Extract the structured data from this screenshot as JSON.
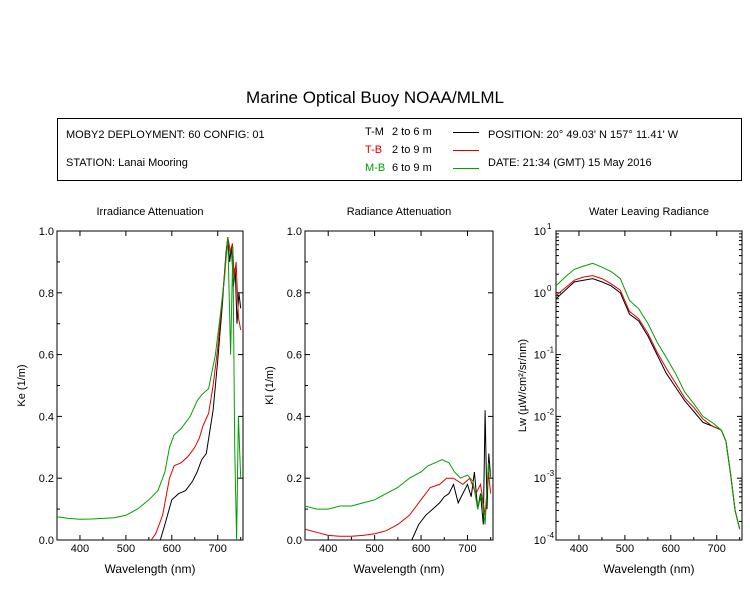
{
  "title": "Marine Optical Buoy NOAA/MLML",
  "info": {
    "deployment": "MOBY2 DEPLOYMENT: 60 CONFIG: 01",
    "station": "STATION: Lanai Mooring",
    "position": "POSITION: 20° 49.03' N   157° 11.41' W",
    "date": "DATE: 21:34 (GMT) 15 May 2016"
  },
  "legend": [
    {
      "label": "T-M",
      "range": "2 to 6  m",
      "color": "#000000"
    },
    {
      "label": "T-B",
      "range": "2 to 9  m",
      "color": "#e00000"
    },
    {
      "label": "M-B",
      "range": "6 to 9  m",
      "color": "#00a000"
    }
  ],
  "chart_data": [
    {
      "type": "line",
      "title": "Irradiance Attenuation",
      "xlabel": "Wavelength (nm)",
      "ylabel": "Ke  (1/m)",
      "xlim": [
        350,
        755
      ],
      "ylim": [
        0,
        1.0
      ],
      "xticks": [
        "400",
        "500",
        "600",
        "700"
      ],
      "yticks": [
        "0.0",
        "0.2",
        "0.4",
        "0.6",
        "0.8",
        "1.0"
      ],
      "series": [
        {
          "name": "T-M",
          "color": "#000000",
          "x": [
            575,
            585,
            600,
            615,
            630,
            645,
            655,
            665,
            675,
            690,
            700,
            710,
            718,
            722,
            726,
            730,
            734,
            738,
            742,
            746,
            750
          ],
          "y": [
            0.0,
            0.05,
            0.13,
            0.15,
            0.16,
            0.19,
            0.22,
            0.26,
            0.28,
            0.42,
            0.58,
            0.76,
            0.93,
            0.98,
            0.9,
            0.95,
            0.82,
            0.88,
            0.7,
            0.8,
            0.75
          ]
        },
        {
          "name": "T-B",
          "color": "#e00000",
          "x": [
            555,
            565,
            580,
            595,
            605,
            620,
            635,
            650,
            660,
            668,
            680,
            690,
            700,
            710,
            718,
            722,
            728,
            732,
            736,
            740,
            745,
            750
          ],
          "y": [
            0.0,
            0.02,
            0.08,
            0.2,
            0.24,
            0.25,
            0.27,
            0.3,
            0.33,
            0.37,
            0.41,
            0.5,
            0.62,
            0.78,
            0.92,
            0.98,
            0.93,
            0.96,
            0.85,
            0.9,
            0.72,
            0.68
          ]
        },
        {
          "name": "M-B",
          "color": "#00a000",
          "x": [
            350,
            375,
            400,
            425,
            450,
            475,
            500,
            525,
            550,
            570,
            585,
            595,
            605,
            620,
            640,
            655,
            665,
            680,
            695,
            705,
            715,
            722,
            728,
            733,
            737,
            741,
            745,
            750
          ],
          "y": [
            0.075,
            0.07,
            0.067,
            0.068,
            0.07,
            0.072,
            0.08,
            0.1,
            0.13,
            0.16,
            0.22,
            0.3,
            0.34,
            0.36,
            0.4,
            0.45,
            0.47,
            0.49,
            0.6,
            0.72,
            0.85,
            0.98,
            0.6,
            0.95,
            0.3,
            0.0,
            0.4,
            0.2
          ]
        }
      ]
    },
    {
      "type": "line",
      "title": "Radiance Attenuation",
      "xlabel": "Wavelength (nm)",
      "ylabel": "Kl  (1/m)",
      "xlim": [
        350,
        755
      ],
      "ylim": [
        0,
        1.0
      ],
      "xticks": [
        "400",
        "500",
        "600",
        "700"
      ],
      "yticks": [
        "0.0",
        "0.2",
        "0.4",
        "0.6",
        "0.8",
        "1.0"
      ],
      "series": [
        {
          "name": "T-M",
          "color": "#000000",
          "x": [
            580,
            595,
            610,
            625,
            640,
            650,
            660,
            670,
            680,
            690,
            700,
            708,
            715,
            722,
            728,
            734,
            738,
            742,
            746,
            750
          ],
          "y": [
            0.0,
            0.05,
            0.08,
            0.1,
            0.12,
            0.14,
            0.15,
            0.18,
            0.12,
            0.15,
            0.18,
            0.14,
            0.22,
            0.1,
            0.15,
            0.05,
            0.42,
            0.1,
            0.28,
            0.2
          ]
        },
        {
          "name": "T-B",
          "color": "#e00000",
          "x": [
            350,
            375,
            400,
            425,
            450,
            475,
            500,
            525,
            550,
            575,
            600,
            620,
            640,
            655,
            670,
            690,
            705,
            718,
            728,
            738,
            745,
            750
          ],
          "y": [
            0.035,
            0.025,
            0.015,
            0.012,
            0.012,
            0.015,
            0.02,
            0.03,
            0.05,
            0.08,
            0.13,
            0.17,
            0.18,
            0.2,
            0.2,
            0.18,
            0.2,
            0.15,
            0.18,
            0.08,
            0.22,
            0.15
          ]
        },
        {
          "name": "M-B",
          "color": "#00a000",
          "x": [
            350,
            375,
            400,
            425,
            450,
            475,
            500,
            525,
            550,
            575,
            600,
            615,
            630,
            645,
            660,
            672,
            685,
            700,
            712,
            722,
            730,
            738,
            745,
            750
          ],
          "y": [
            0.11,
            0.1,
            0.1,
            0.11,
            0.11,
            0.12,
            0.13,
            0.15,
            0.17,
            0.2,
            0.22,
            0.24,
            0.25,
            0.26,
            0.25,
            0.22,
            0.2,
            0.21,
            0.19,
            0.1,
            0.15,
            0.05,
            0.25,
            0.2
          ]
        }
      ]
    },
    {
      "type": "line",
      "title": "Water Leaving Radiance",
      "xlabel": "Wavelength (nm)",
      "ylabel": "Lw  (µW/cm²/sr/nm)",
      "xlim": [
        350,
        755
      ],
      "ylim_log10": [
        -4,
        1
      ],
      "xticks": [
        "400",
        "500",
        "600",
        "700"
      ],
      "yticks": [
        {
          "base": "10",
          "exp": "-4"
        },
        {
          "base": "10",
          "exp": "-3"
        },
        {
          "base": "10",
          "exp": "-2"
        },
        {
          "base": "10",
          "exp": "-1"
        },
        {
          "base": "10",
          "exp": "0"
        },
        {
          "base": "10",
          "exp": "1"
        }
      ],
      "series": [
        {
          "name": "T-M",
          "color": "#000000",
          "x": [
            350,
            370,
            390,
            410,
            430,
            450,
            470,
            490,
            510,
            530,
            550,
            570,
            590,
            610,
            630,
            650,
            670,
            690,
            710,
            720,
            730,
            740,
            750
          ],
          "y": [
            0.8,
            1.1,
            1.5,
            1.6,
            1.7,
            1.5,
            1.3,
            1.0,
            0.45,
            0.35,
            0.2,
            0.1,
            0.05,
            0.03,
            0.018,
            0.012,
            0.008,
            0.007,
            0.006,
            0.004,
            0.0012,
            0.0003,
            0.00015
          ]
        },
        {
          "name": "T-B",
          "color": "#e00000",
          "x": [
            350,
            370,
            390,
            410,
            430,
            450,
            470,
            490,
            510,
            530,
            550,
            570,
            590,
            610,
            630,
            650,
            670,
            690,
            710,
            720,
            730,
            740,
            750
          ],
          "y": [
            0.9,
            1.2,
            1.6,
            1.8,
            1.9,
            1.7,
            1.4,
            1.1,
            0.5,
            0.38,
            0.22,
            0.11,
            0.06,
            0.035,
            0.02,
            0.014,
            0.009,
            0.007,
            0.006,
            0.004,
            0.0012,
            0.0003,
            0.00015
          ]
        },
        {
          "name": "M-B",
          "color": "#00a000",
          "x": [
            350,
            370,
            390,
            410,
            430,
            450,
            470,
            490,
            510,
            530,
            550,
            570,
            590,
            610,
            630,
            650,
            670,
            690,
            710,
            720,
            730,
            740,
            750
          ],
          "y": [
            1.3,
            1.8,
            2.4,
            2.7,
            3.0,
            2.6,
            2.2,
            1.7,
            0.75,
            0.55,
            0.32,
            0.16,
            0.09,
            0.05,
            0.025,
            0.016,
            0.01,
            0.008,
            0.006,
            0.004,
            0.0012,
            0.0003,
            0.00015
          ]
        }
      ]
    }
  ]
}
